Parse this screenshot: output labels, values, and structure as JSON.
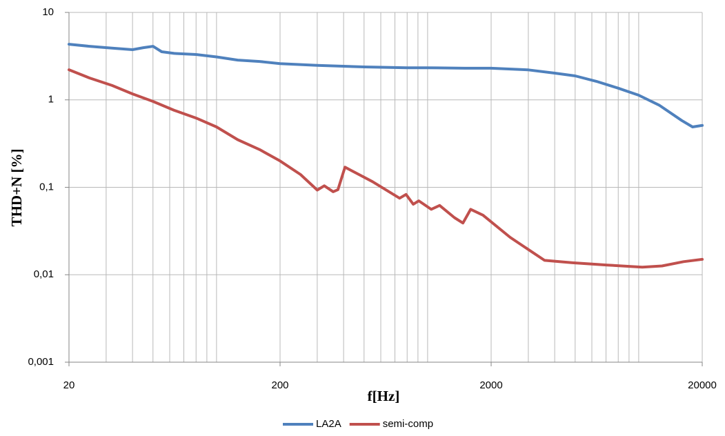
{
  "chart_data": {
    "type": "line",
    "xlabel": "f[Hz]",
    "ylabel": "THD+N [%]",
    "xscale": "log",
    "yscale": "log",
    "xlim": [
      20,
      20000
    ],
    "ylim": [
      0.001,
      10
    ],
    "xticks": [
      20,
      200,
      2000,
      20000
    ],
    "xminorticks": [
      30,
      40,
      50,
      60,
      70,
      80,
      90,
      100,
      300,
      400,
      500,
      600,
      700,
      800,
      900,
      1000,
      3000,
      4000,
      5000,
      6000,
      7000,
      8000,
      9000,
      10000
    ],
    "yticks": [
      {
        "value": 0.001,
        "label": "0,001"
      },
      {
        "value": 0.01,
        "label": "0,01"
      },
      {
        "value": 0.1,
        "label": "0,1"
      },
      1,
      10
    ],
    "grid": true,
    "legend": "bottom",
    "series": [
      {
        "name": "LA2A",
        "color": "#4f81bd",
        "x": [
          20,
          25,
          32,
          40,
          45,
          50,
          55,
          63,
          80,
          100,
          126,
          160,
          200,
          300,
          500,
          800,
          1000,
          1500,
          2000,
          3000,
          4000,
          5000,
          6300,
          8000,
          10000,
          12500,
          16000,
          18000,
          20000
        ],
        "values": [
          4.33,
          4.1,
          3.9,
          3.75,
          3.95,
          4.1,
          3.55,
          3.4,
          3.3,
          3.1,
          2.85,
          2.75,
          2.6,
          2.48,
          2.38,
          2.33,
          2.33,
          2.3,
          2.3,
          2.2,
          2.02,
          1.88,
          1.63,
          1.36,
          1.13,
          0.87,
          0.58,
          0.49,
          0.51
        ]
      },
      {
        "name": "semi-comp",
        "color": "#c0504d",
        "x": [
          20,
          25,
          32,
          40,
          50,
          63,
          80,
          100,
          126,
          160,
          200,
          250,
          300,
          324,
          357,
          376,
          406,
          548,
          737,
          790,
          855,
          908,
          1040,
          1140,
          1340,
          1470,
          1600,
          1830,
          2460,
          3580,
          4860,
          7100,
          10400,
          12900,
          16300,
          20000
        ],
        "values": [
          2.21,
          1.78,
          1.46,
          1.17,
          0.96,
          0.76,
          0.62,
          0.49,
          0.35,
          0.27,
          0.2,
          0.14,
          0.093,
          0.104,
          0.089,
          0.094,
          0.17,
          0.116,
          0.075,
          0.083,
          0.064,
          0.07,
          0.056,
          0.062,
          0.045,
          0.039,
          0.056,
          0.048,
          0.0268,
          0.0146,
          0.0137,
          0.0129,
          0.0122,
          0.0126,
          0.0141,
          0.015
        ]
      }
    ]
  }
}
